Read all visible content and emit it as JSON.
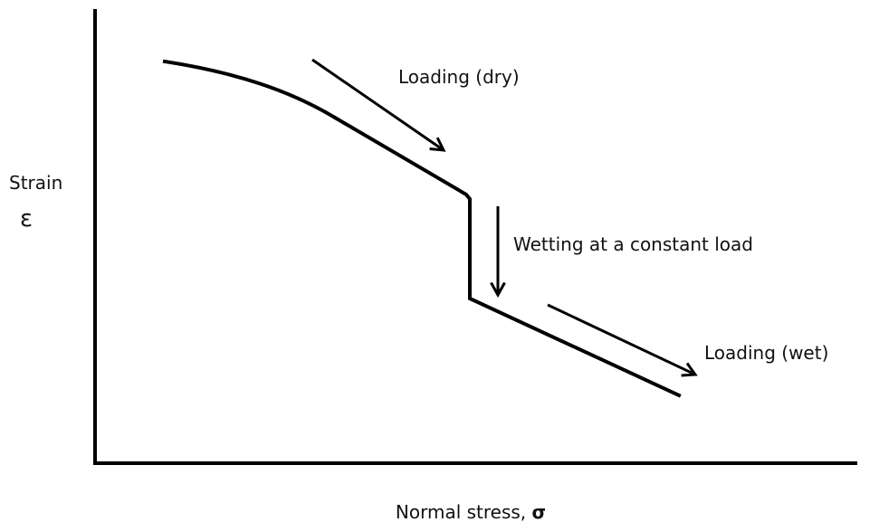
{
  "axes": {
    "y_label": "Strain",
    "y_symbol": "ε",
    "x_label": "Normal stress,",
    "x_symbol": "σ"
  },
  "annotations": [
    "Loading (dry)",
    "Wetting at a constant load",
    "Loading (wet)"
  ]
}
